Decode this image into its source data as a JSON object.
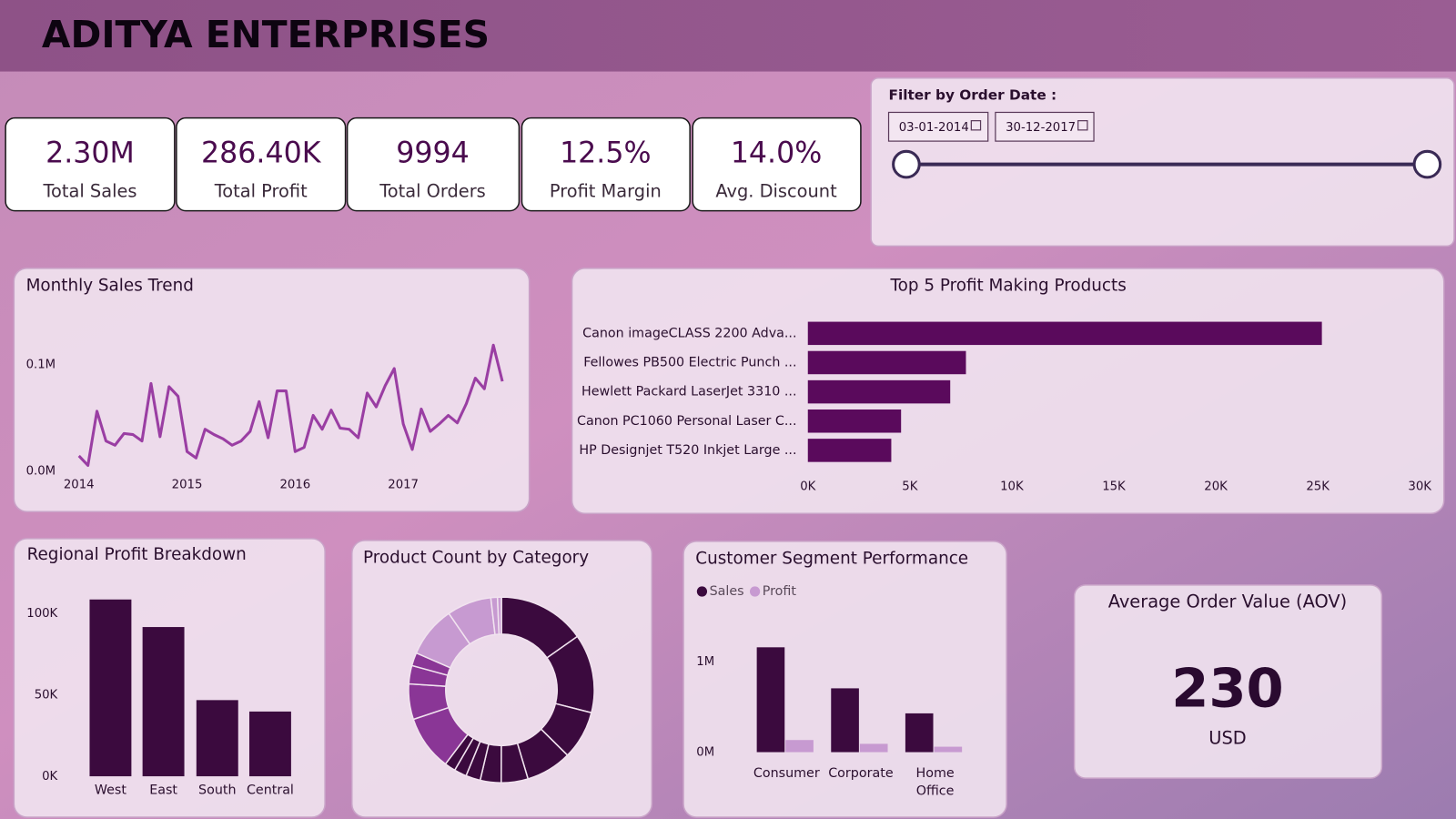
{
  "header": {
    "title": "ADITYA ENTERPRISES"
  },
  "kpis": [
    {
      "value": "2.30M",
      "label": "Total Sales"
    },
    {
      "value": "286.40K",
      "label": "Total Profit"
    },
    {
      "value": "9994",
      "label": "Total Orders"
    },
    {
      "value": "12.5%",
      "label": "Profit Margin"
    },
    {
      "value": "14.0%",
      "label": "Avg. Discount"
    }
  ],
  "filter": {
    "title": "Filter by Order Date :",
    "start": "03-01-2014",
    "end": "30-12-2017"
  },
  "chart_data": [
    {
      "type": "line",
      "title": "Monthly Sales Trend",
      "categories": [
        "2014",
        null,
        null,
        null,
        null,
        null,
        null,
        null,
        null,
        null,
        null,
        null,
        "2015",
        null,
        null,
        null,
        null,
        null,
        null,
        null,
        null,
        null,
        null,
        null,
        "2016",
        null,
        null,
        null,
        null,
        null,
        null,
        null,
        null,
        null,
        null,
        null,
        "2017",
        null,
        null,
        null,
        null,
        null,
        null,
        null,
        null,
        null,
        null,
        null
      ],
      "values": [
        0.014,
        0.005,
        0.056,
        0.028,
        0.024,
        0.035,
        0.034,
        0.028,
        0.082,
        0.032,
        0.079,
        0.07,
        0.018,
        0.012,
        0.039,
        0.034,
        0.03,
        0.024,
        0.028,
        0.037,
        0.065,
        0.031,
        0.075,
        0.075,
        0.018,
        0.022,
        0.052,
        0.039,
        0.057,
        0.04,
        0.039,
        0.031,
        0.073,
        0.06,
        0.08,
        0.096,
        0.044,
        0.02,
        0.058,
        0.037,
        0.044,
        0.052,
        0.045,
        0.063,
        0.087,
        0.077,
        0.118,
        0.084
      ],
      "color": "#9a3ea3",
      "ylim": [
        0,
        0.15
      ],
      "yticks": [
        {
          "value": 0,
          "label": "0.0M"
        },
        {
          "value": 0.1,
          "label": "0.1M"
        }
      ]
    },
    {
      "type": "hbar",
      "title": "Top 5 Profit Making Products",
      "categories": [
        "Canon imageCLASS 2200 Adva...",
        "Fellowes PB500 Electric Punch ...",
        "Hewlett Packard LaserJet 3310 ...",
        "Canon PC1060 Personal Laser C...",
        "HP Designjet T520 Inkjet Large ..."
      ],
      "values": [
        25200,
        7750,
        6980,
        4570,
        4090
      ],
      "color": "#5a0a5c",
      "xlim": [
        0,
        30000
      ],
      "xticks": [
        {
          "value": 0,
          "label": "0K"
        },
        {
          "value": 5000,
          "label": "5K"
        },
        {
          "value": 10000,
          "label": "10K"
        },
        {
          "value": 15000,
          "label": "15K"
        },
        {
          "value": 20000,
          "label": "20K"
        },
        {
          "value": 25000,
          "label": "25K"
        },
        {
          "value": 30000,
          "label": "30K"
        }
      ]
    },
    {
      "type": "bar",
      "title": "Regional Profit Breakdown",
      "categories": [
        "West",
        "East",
        "South",
        "Central"
      ],
      "values": [
        108400,
        91500,
        46700,
        39700
      ],
      "color": "#3b0a3e",
      "ylim": [
        0,
        115000
      ],
      "yticks": [
        {
          "value": 0,
          "label": "0K"
        },
        {
          "value": 50000,
          "label": "50K"
        },
        {
          "value": 100000,
          "label": "100K"
        }
      ]
    },
    {
      "type": "donut",
      "title": "Product Count by Category",
      "values": [
        1523,
        1370,
        846,
        796,
        466,
        364,
        254,
        217,
        190,
        957,
        617,
        319,
        228,
        889,
        775,
        115,
        68
      ],
      "colors": [
        "#3b0a3e",
        "#3b0a3e",
        "#3b0a3e",
        "#3b0a3e",
        "#3b0a3e",
        "#3b0a3e",
        "#3b0a3e",
        "#3b0a3e",
        "#3b0a3e",
        "#8a3696",
        "#8a3696",
        "#8a3696",
        "#8a3696",
        "#c79ad1",
        "#c79ad1",
        "#c79ad1",
        "#c79ad1"
      ]
    },
    {
      "type": "groupedbar",
      "title": "Customer Segment Performance",
      "categories": [
        "Consumer",
        "Corporate",
        "Home Office"
      ],
      "series": [
        {
          "name": "Sales",
          "color": "#3b0a3e",
          "values": [
            1.16,
            0.706,
            0.429
          ]
        },
        {
          "name": "Profit",
          "color": "#c79ad1",
          "values": [
            0.134,
            0.092,
            0.06
          ]
        }
      ],
      "ylim": [
        0,
        1.5
      ],
      "yticks": [
        {
          "value": 0,
          "label": "0M"
        },
        {
          "value": 1,
          "label": "1M"
        }
      ]
    }
  ],
  "aov": {
    "title": "Average Order Value (AOV)",
    "value": "230",
    "unit": "USD"
  }
}
